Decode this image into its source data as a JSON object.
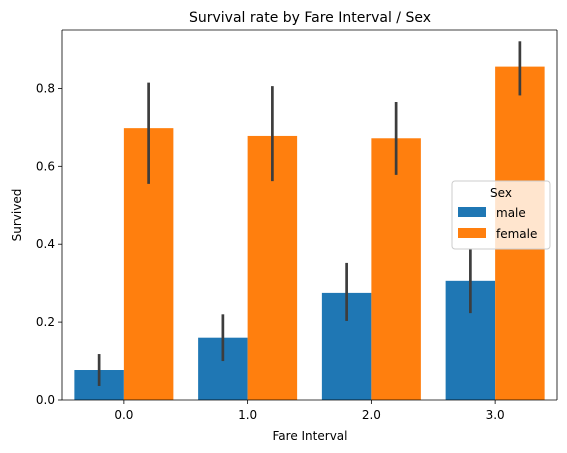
{
  "chart_data": {
    "type": "bar",
    "title": "Survival rate by Fare Interval / Sex",
    "xlabel": "Fare Interval",
    "ylabel": "Survived",
    "categories": [
      "0.0",
      "1.0",
      "2.0",
      "3.0"
    ],
    "ylim": [
      0,
      0.95
    ],
    "yticks": [
      0.0,
      0.2,
      0.4,
      0.6,
      0.8
    ],
    "ytick_labels": [
      "0.0",
      "0.2",
      "0.4",
      "0.6",
      "0.8"
    ],
    "grid": false,
    "legend": {
      "title": "Sex",
      "position": "center-right"
    },
    "series": [
      {
        "name": "male",
        "color": "#1f77b4",
        "values": [
          0.077,
          0.16,
          0.275,
          0.306
        ],
        "ci_low": [
          0.036,
          0.1,
          0.203,
          0.223
        ],
        "ci_high": [
          0.118,
          0.22,
          0.352,
          0.388
        ]
      },
      {
        "name": "female",
        "color": "#ff7f0e",
        "values": [
          0.698,
          0.678,
          0.672,
          0.856
        ],
        "ci_low": [
          0.555,
          0.562,
          0.578,
          0.782
        ],
        "ci_high": [
          0.815,
          0.806,
          0.765,
          0.921
        ]
      }
    ]
  }
}
